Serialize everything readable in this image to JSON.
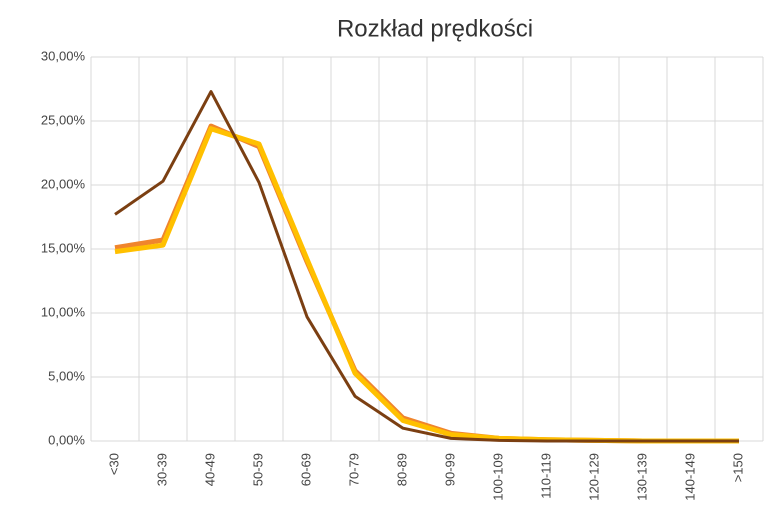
{
  "chart_data": {
    "type": "line",
    "title": "Rozkład prędkości",
    "categories": [
      "<30",
      "30-39",
      "40-49",
      "50-59",
      "60-69",
      "70-79",
      "80-89",
      "90-99",
      "100-109",
      "110-119",
      "120-129",
      "130-139",
      "140-149",
      ">150"
    ],
    "series": [
      {
        "color": "#f0852d",
        "values": [
          15.1,
          15.7,
          24.6,
          23.0,
          14.0,
          5.5,
          1.8,
          0.6,
          0.2,
          0.1,
          0.05,
          0,
          0,
          0
        ]
      },
      {
        "color": "#ffc000",
        "values": [
          14.8,
          15.3,
          24.4,
          23.2,
          14.2,
          5.3,
          1.6,
          0.5,
          0.2,
          0.1,
          0.05,
          0,
          0,
          0
        ]
      },
      {
        "color": "#7b3f12",
        "values": [
          17.7,
          20.3,
          27.3,
          20.2,
          9.7,
          3.5,
          1.0,
          0.2,
          0.05,
          0,
          0,
          0,
          0,
          0
        ]
      }
    ],
    "ylim": [
      0,
      30
    ],
    "yticks": [
      {
        "value": 0,
        "label": "0,00%"
      },
      {
        "value": 5,
        "label": "5,00%"
      },
      {
        "value": 10,
        "label": "10,00%"
      },
      {
        "value": 15,
        "label": "15,00%"
      },
      {
        "value": 20,
        "label": "20,00%"
      },
      {
        "value": 25,
        "label": "25,00%"
      },
      {
        "value": 30,
        "label": "30,00%"
      }
    ],
    "grid": true
  }
}
